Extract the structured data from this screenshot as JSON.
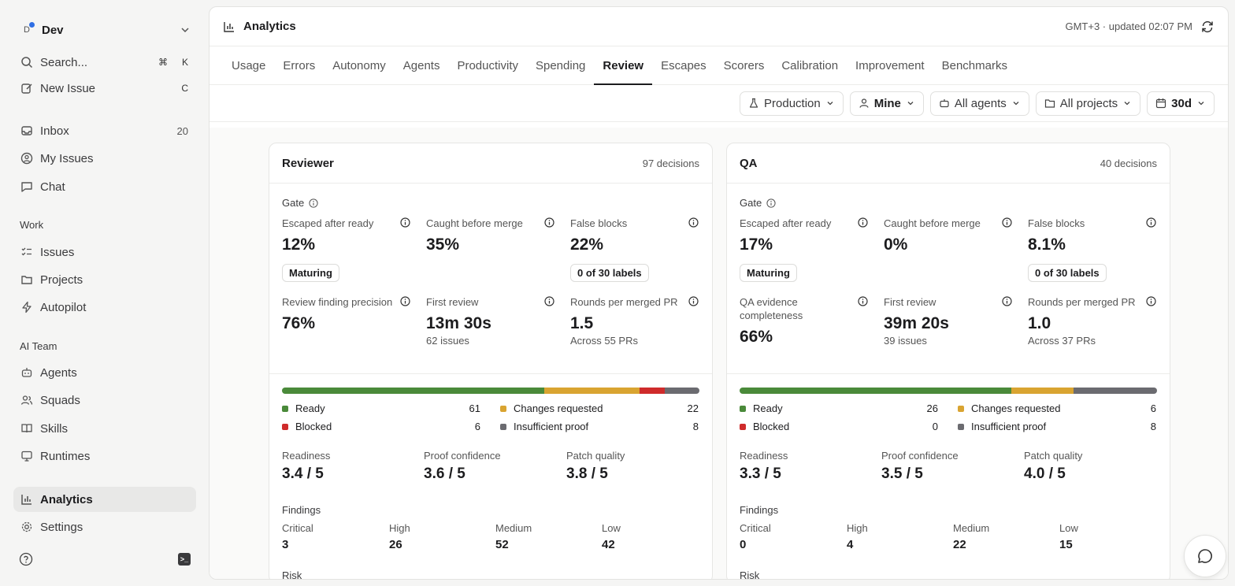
{
  "workspace": {
    "initial": "D",
    "name": "Dev"
  },
  "sidebar": {
    "search": {
      "label": "Search...",
      "shortcut": [
        "⌘",
        "K"
      ]
    },
    "new_issue": {
      "label": "New Issue",
      "shortcut": "C"
    },
    "inbox": {
      "label": "Inbox",
      "count": "20"
    },
    "my_issues": "My Issues",
    "chat": "Chat",
    "work_label": "Work",
    "work": [
      "Issues",
      "Projects",
      "Autopilot"
    ],
    "ai_label": "AI Team",
    "ai": [
      "Agents",
      "Squads",
      "Skills",
      "Runtimes"
    ],
    "analytics": "Analytics",
    "settings": "Settings"
  },
  "header": {
    "title": "Analytics",
    "meta": "GMT+3 · updated 02:07 PM"
  },
  "tabs": [
    "Usage",
    "Errors",
    "Autonomy",
    "Agents",
    "Productivity",
    "Spending",
    "Review",
    "Escapes",
    "Scorers",
    "Calibration",
    "Improvement",
    "Benchmarks"
  ],
  "active_tab": "Review",
  "filters": {
    "env": "Production",
    "owner": "Mine",
    "agents": "All agents",
    "projects": "All projects",
    "range": "30d"
  },
  "colors": {
    "ready": "#4a8a3a",
    "changes": "#d9a431",
    "blocked": "#cf2b2b",
    "insufficient": "#6b6b70"
  },
  "cards": [
    {
      "name": "Reviewer",
      "decisions": "97 decisions",
      "gate_label": "Gate",
      "escaped": {
        "label": "Escaped after ready",
        "value": "12%",
        "pill": "Maturing"
      },
      "caught": {
        "label": "Caught before merge",
        "value": "35%"
      },
      "false_blocks": {
        "label": "False blocks",
        "value": "22%",
        "pill": "0 of 30 labels"
      },
      "m4": {
        "label": "Review finding precision",
        "value": "76%"
      },
      "first_review": {
        "label": "First review",
        "value": "13m 30s",
        "sub": "62 issues"
      },
      "rounds": {
        "label": "Rounds per merged PR",
        "value": "1.5",
        "sub": "Across 55 PRs"
      },
      "legend": {
        "ready": {
          "label": "Ready",
          "count": "61"
        },
        "changes": {
          "label": "Changes requested",
          "count": "22"
        },
        "blocked": {
          "label": "Blocked",
          "count": "6"
        },
        "insufficient": {
          "label": "Insufficient proof",
          "count": "8"
        }
      },
      "bar": [
        61,
        22,
        6,
        8
      ],
      "scores": {
        "readiness": {
          "label": "Readiness",
          "value": "3.4 / 5"
        },
        "proof": {
          "label": "Proof confidence",
          "value": "3.6 / 5"
        },
        "patch": {
          "label": "Patch quality",
          "value": "3.8 / 5"
        }
      },
      "findings_label": "Findings",
      "findings": {
        "critical": {
          "label": "Critical",
          "value": "3"
        },
        "high": {
          "label": "High",
          "value": "26"
        },
        "medium": {
          "label": "Medium",
          "value": "52"
        },
        "low": {
          "label": "Low",
          "value": "42"
        }
      },
      "risk_label": "Risk"
    },
    {
      "name": "QA",
      "decisions": "40 decisions",
      "gate_label": "Gate",
      "escaped": {
        "label": "Escaped after ready",
        "value": "17%",
        "pill": "Maturing"
      },
      "caught": {
        "label": "Caught before merge",
        "value": "0%"
      },
      "false_blocks": {
        "label": "False blocks",
        "value": "8.1%",
        "pill": "0 of 30 labels"
      },
      "m4": {
        "label": "QA evidence completeness",
        "value": "66%"
      },
      "first_review": {
        "label": "First review",
        "value": "39m 20s",
        "sub": "39 issues"
      },
      "rounds": {
        "label": "Rounds per merged PR",
        "value": "1.0",
        "sub": "Across 37 PRs"
      },
      "legend": {
        "ready": {
          "label": "Ready",
          "count": "26"
        },
        "changes": {
          "label": "Changes requested",
          "count": "6"
        },
        "blocked": {
          "label": "Blocked",
          "count": "0"
        },
        "insufficient": {
          "label": "Insufficient proof",
          "count": "8"
        }
      },
      "bar": [
        26,
        6,
        0,
        8
      ],
      "scores": {
        "readiness": {
          "label": "Readiness",
          "value": "3.3 / 5"
        },
        "proof": {
          "label": "Proof confidence",
          "value": "3.5 / 5"
        },
        "patch": {
          "label": "Patch quality",
          "value": "4.0 / 5"
        }
      },
      "findings_label": "Findings",
      "findings": {
        "critical": {
          "label": "Critical",
          "value": "0"
        },
        "high": {
          "label": "High",
          "value": "4"
        },
        "medium": {
          "label": "Medium",
          "value": "22"
        },
        "low": {
          "label": "Low",
          "value": "15"
        }
      },
      "risk_label": "Risk"
    }
  ]
}
